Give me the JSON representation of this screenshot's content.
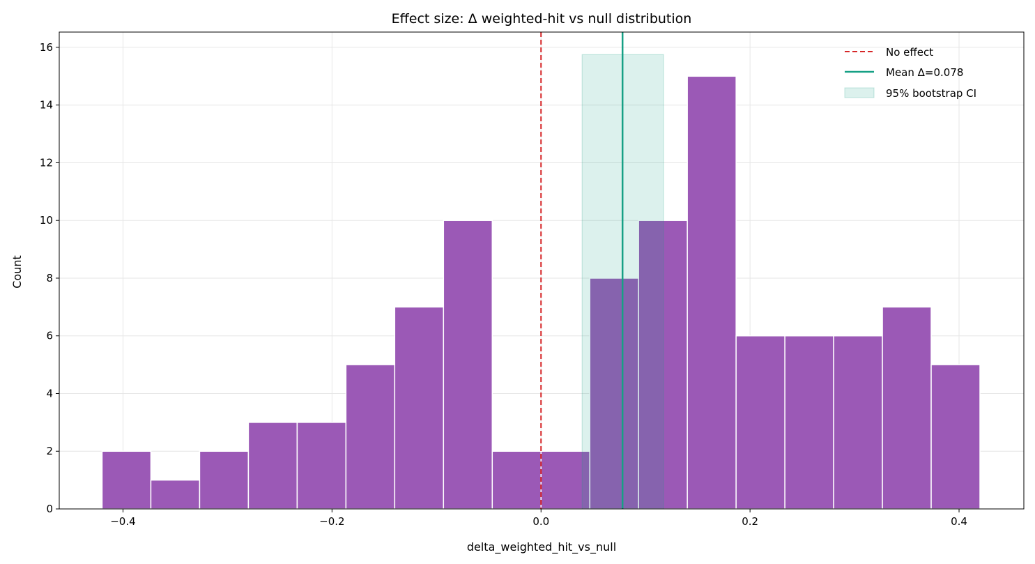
{
  "chart_data": {
    "type": "bar",
    "title": "Effect size: Δ weighted-hit vs null distribution",
    "xlabel": "delta_weighted_hit_vs_null",
    "ylabel": "Count",
    "xlim": [
      -0.461,
      0.462
    ],
    "ylim": [
      0,
      16.53
    ],
    "grid": true,
    "legend_placement": "top-right",
    "x_ticks": [
      -0.4,
      -0.2,
      0.0,
      0.2,
      0.4
    ],
    "x_tick_labels": [
      "−0.4",
      "−0.2",
      "0.0",
      "0.2",
      "0.4"
    ],
    "y_ticks": [
      0,
      2,
      4,
      6,
      8,
      10,
      12,
      14,
      16
    ],
    "y_tick_labels": [
      "0",
      "2",
      "4",
      "6",
      "8",
      "10",
      "12",
      "14",
      "16"
    ],
    "bin_range": [
      -0.42,
      0.42
    ],
    "counts": [
      2,
      1,
      2,
      3,
      3,
      5,
      7,
      10,
      2,
      2,
      8,
      10,
      15,
      6,
      6,
      6,
      7,
      5
    ],
    "bar_color": "#9b59b6",
    "no_effect": {
      "x": 0.0,
      "label": "No effect",
      "color": "#d62728"
    },
    "mean": {
      "x": 0.078,
      "label": "Mean Δ=0.078",
      "color": "#16a085"
    },
    "ci": {
      "low": 0.0393,
      "high": 0.1173,
      "height": 15.75,
      "label": "95% bootstrap CI",
      "color": "#16a085"
    }
  }
}
